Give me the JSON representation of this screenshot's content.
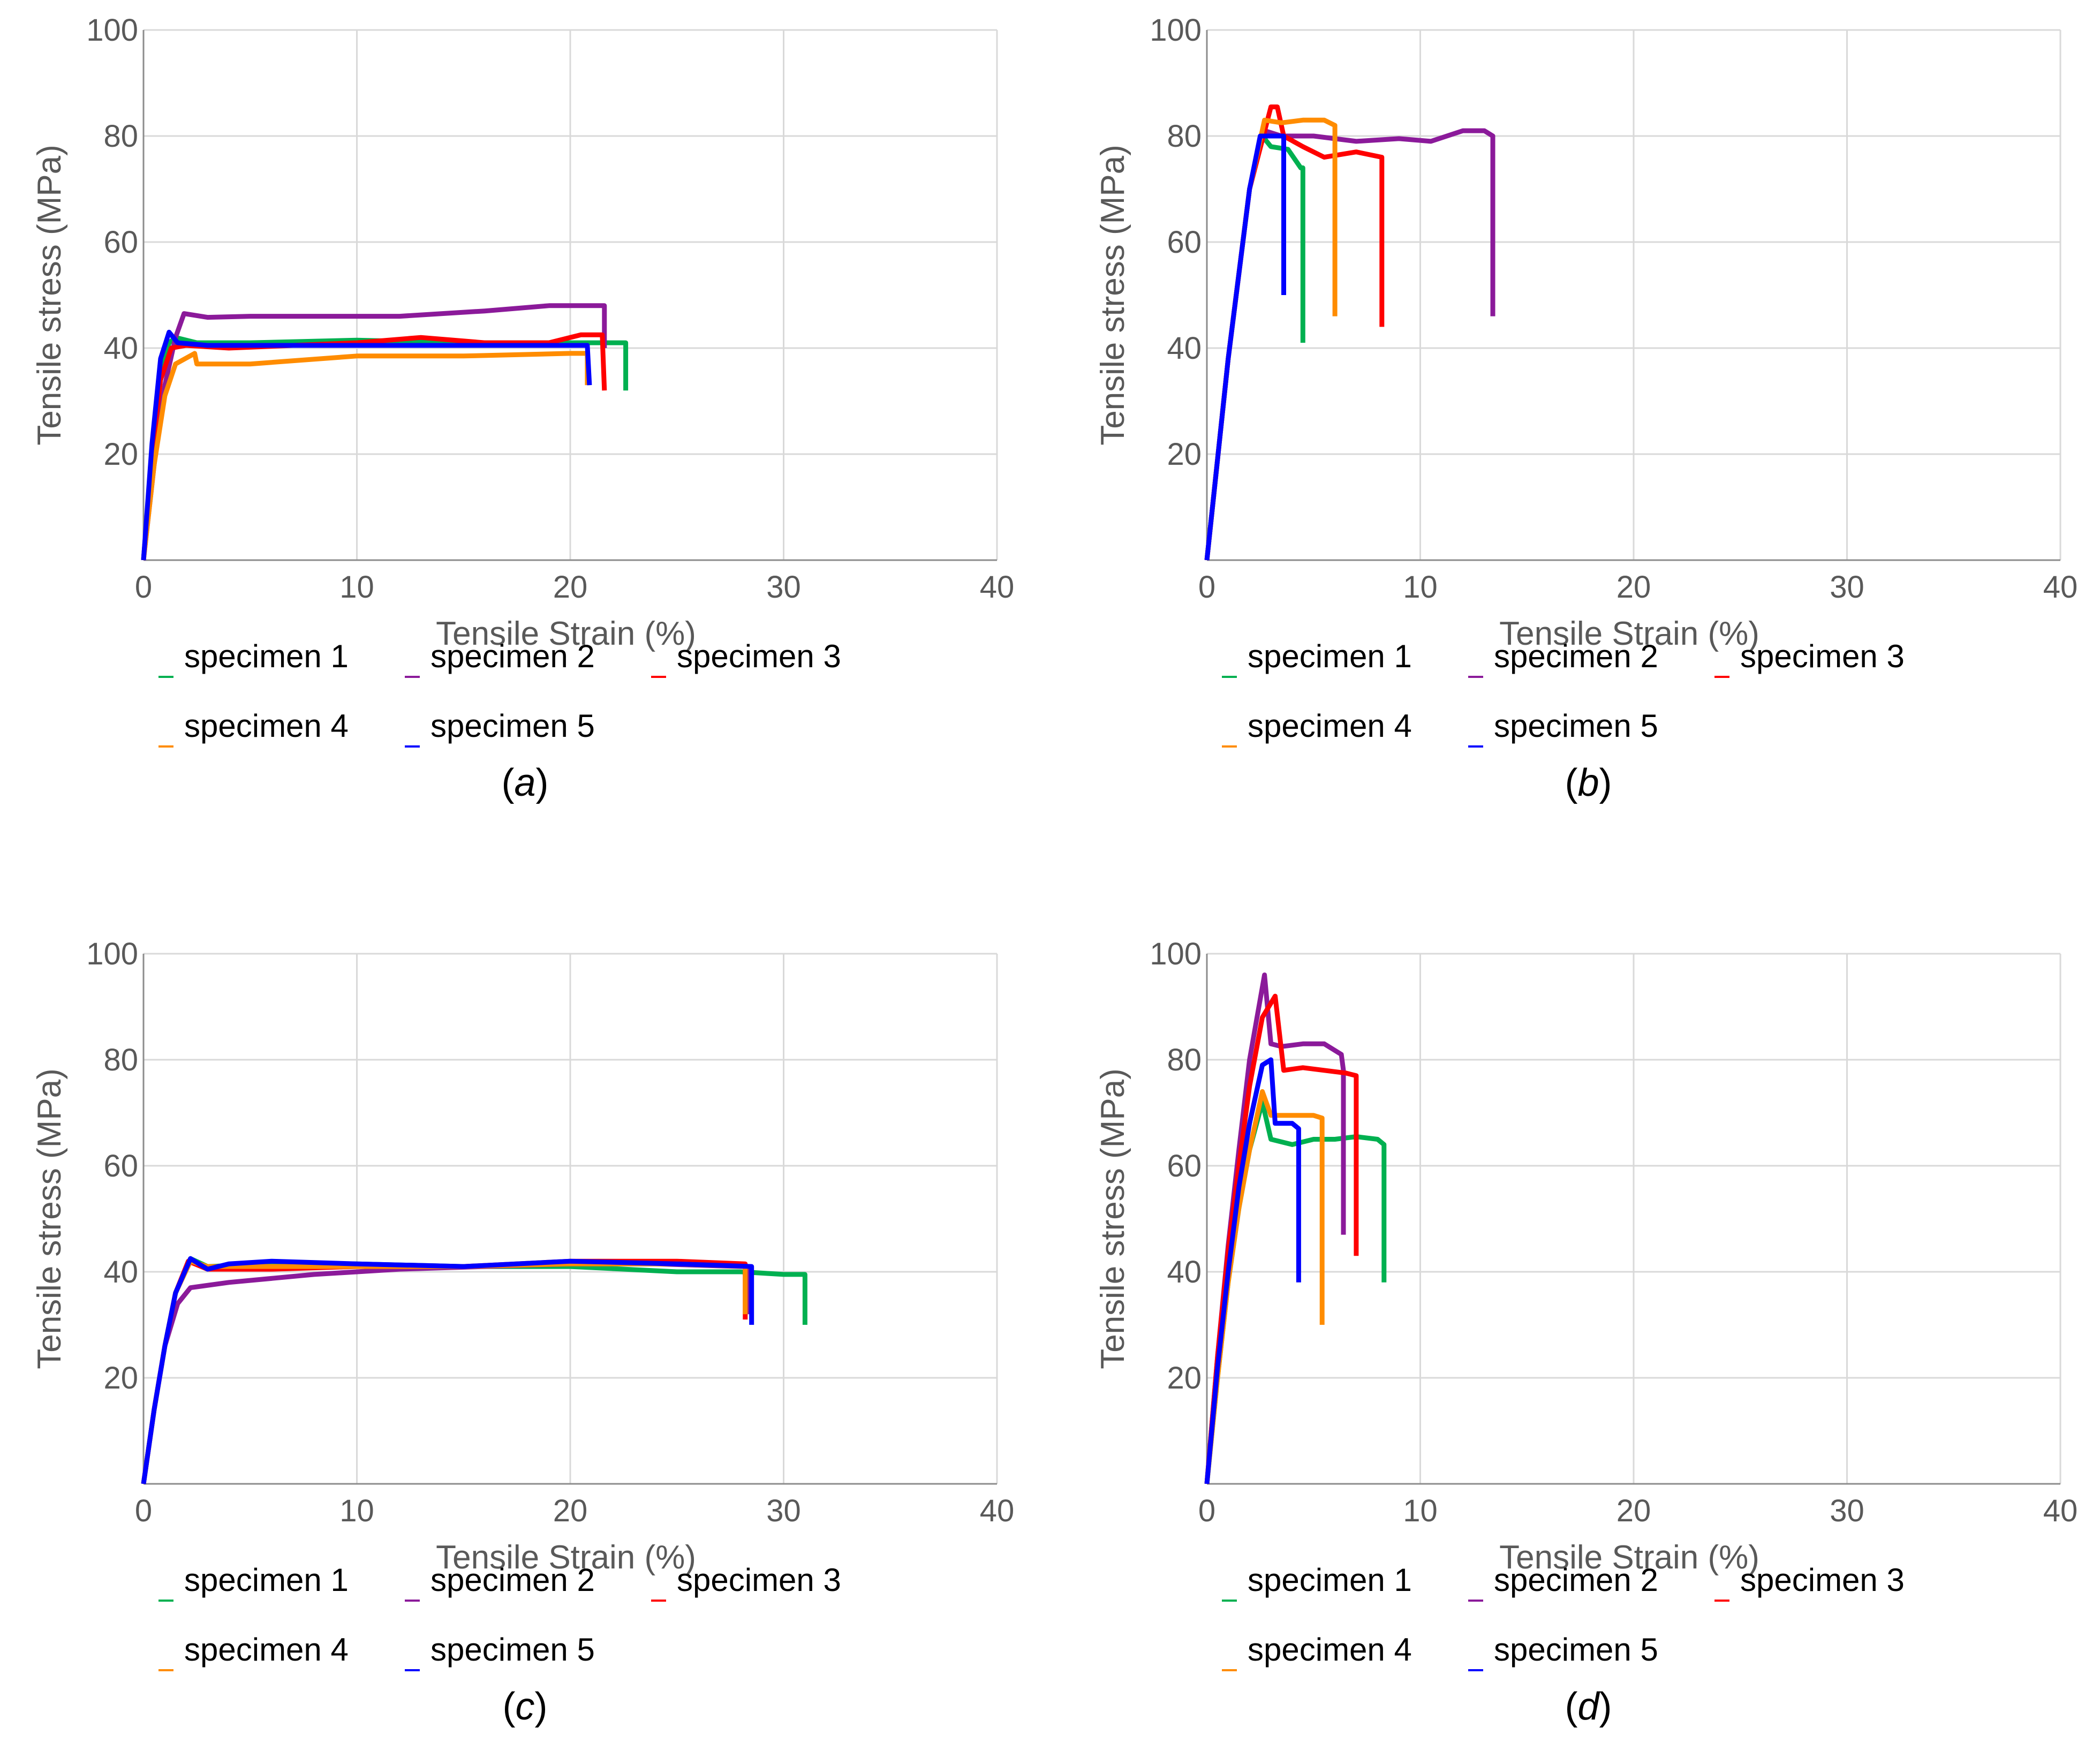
{
  "figure": {
    "colors": {
      "specimen 1": "#00b050",
      "specimen 2": "#8b1a9a",
      "specimen 3": "#ff0000",
      "specimen 4": "#ff8c00",
      "specimen 5": "#0000ff"
    }
  },
  "chart_data": [
    {
      "type": "line",
      "panel_label": "a",
      "xlabel": "Tensile Strain (%)",
      "ylabel": "Tensile stress (MPa)",
      "xlim": [
        0,
        40
      ],
      "ylim": [
        0,
        100
      ],
      "xticks": [
        0,
        10,
        20,
        30,
        40
      ],
      "yticks": [
        20,
        40,
        60,
        80,
        100
      ],
      "grid": true,
      "legend_position": "bottom",
      "series": [
        {
          "name": "specimen 1",
          "x": [
            0,
            0.4,
            0.8,
            1.2,
            1.5,
            2.5,
            5,
            10,
            15,
            20,
            22,
            22.6,
            22.6
          ],
          "y": [
            0,
            20,
            35,
            41,
            42,
            41,
            41,
            41.5,
            41,
            41,
            41,
            41,
            32
          ]
        },
        {
          "name": "specimen 2",
          "x": [
            0,
            0.5,
            1,
            1.5,
            1.9,
            3,
            5,
            8,
            12,
            16,
            19,
            21,
            21.6,
            21.6
          ],
          "y": [
            0,
            18,
            33,
            42,
            46.5,
            45.8,
            46,
            46,
            46,
            47,
            48,
            48,
            48,
            40
          ]
        },
        {
          "name": "specimen 3",
          "x": [
            0,
            0.4,
            0.8,
            1.3,
            2,
            4,
            7,
            10,
            13,
            16,
            19,
            20.5,
            21.5,
            21.6
          ],
          "y": [
            0,
            20,
            34,
            40,
            40.5,
            40,
            40.5,
            41,
            42,
            41,
            41,
            42.5,
            42.5,
            32
          ]
        },
        {
          "name": "specimen 4",
          "x": [
            0,
            0.5,
            1,
            1.5,
            2.4,
            2.5,
            5,
            10,
            15,
            20,
            20.8,
            20.8
          ],
          "y": [
            0,
            18,
            31,
            37,
            39,
            37,
            37,
            38.5,
            38.5,
            39,
            39,
            33
          ]
        },
        {
          "name": "specimen 5",
          "x": [
            0,
            0.4,
            0.8,
            1.2,
            1.6,
            3,
            6,
            10,
            14,
            18,
            20.8,
            20.9
          ],
          "y": [
            0,
            22,
            38,
            43,
            41,
            40.5,
            40.5,
            40.5,
            40.5,
            40.5,
            40.5,
            33
          ]
        }
      ]
    },
    {
      "type": "line",
      "panel_label": "b",
      "xlabel": "Tensile Strain (%)",
      "ylabel": "Tensile stress (MPa)",
      "xlim": [
        0,
        40
      ],
      "ylim": [
        0,
        100
      ],
      "xticks": [
        0,
        10,
        20,
        30,
        40
      ],
      "yticks": [
        20,
        40,
        60,
        80,
        100
      ],
      "grid": true,
      "legend_position": "bottom",
      "series": [
        {
          "name": "specimen 1",
          "x": [
            0,
            1,
            2,
            2.6,
            3,
            3.8,
            4.4,
            4.5,
            4.5
          ],
          "y": [
            0,
            38,
            70,
            80,
            78,
            77.5,
            74,
            74,
            41
          ]
        },
        {
          "name": "specimen 2",
          "x": [
            0,
            1,
            2,
            2.7,
            3.5,
            5,
            7,
            9,
            10.5,
            12,
            13,
            13.4,
            13.4
          ],
          "y": [
            0,
            38,
            70,
            81,
            80,
            80,
            79,
            79.5,
            79,
            81,
            81,
            80,
            46
          ]
        },
        {
          "name": "specimen 3",
          "x": [
            0,
            1,
            2,
            3,
            3.3,
            3.6,
            4.5,
            5.5,
            7,
            8.2,
            8.2
          ],
          "y": [
            0,
            38,
            70,
            85.5,
            85.5,
            80,
            78,
            76,
            77,
            76,
            44
          ]
        },
        {
          "name": "specimen 4",
          "x": [
            0,
            1,
            2,
            2.7,
            3.5,
            4.5,
            5.5,
            6,
            6,
            6
          ],
          "y": [
            0,
            38,
            70,
            83,
            82.5,
            83,
            83,
            82,
            76,
            46
          ]
        },
        {
          "name": "specimen 5",
          "x": [
            0,
            1,
            2,
            2.5,
            3,
            3.6,
            3.6
          ],
          "y": [
            0,
            38,
            70,
            80,
            80,
            80,
            50
          ]
        }
      ]
    },
    {
      "type": "line",
      "panel_label": "c",
      "xlabel": "Tensile Strain (%)",
      "ylabel": "Tensile stress (MPa)",
      "xlim": [
        0,
        40
      ],
      "ylim": [
        0,
        100
      ],
      "xticks": [
        0,
        10,
        20,
        30,
        40
      ],
      "yticks": [
        20,
        40,
        60,
        80,
        100
      ],
      "grid": true,
      "legend_position": "bottom",
      "series": [
        {
          "name": "specimen 1",
          "x": [
            0,
            0.5,
            1,
            1.5,
            2.2,
            3,
            6,
            10,
            15,
            20,
            25,
            28,
            30,
            31,
            31
          ],
          "y": [
            0,
            14,
            26,
            36,
            42.5,
            41,
            41.5,
            41.5,
            41,
            41,
            40,
            40,
            39.5,
            39.5,
            30
          ]
        },
        {
          "name": "specimen 2",
          "x": [
            0,
            0.5,
            1,
            1.6,
            2.2,
            4,
            8,
            12,
            16,
            20,
            24,
            28,
            28.3,
            28.3
          ],
          "y": [
            0,
            14,
            26,
            34,
            37,
            38,
            39.5,
            40.5,
            41,
            41.5,
            41.5,
            41,
            41,
            32
          ]
        },
        {
          "name": "specimen 3",
          "x": [
            0,
            0.5,
            1,
            1.5,
            2.1,
            3,
            6,
            10,
            15,
            20,
            25,
            28.2,
            28.2
          ],
          "y": [
            0,
            14,
            26,
            36,
            42,
            40.5,
            40.5,
            41,
            41,
            42,
            42,
            41.5,
            31
          ]
        },
        {
          "name": "specimen 4",
          "x": [
            0,
            0.5,
            1,
            1.5,
            2.2,
            3,
            6,
            10,
            15,
            20,
            25,
            28.2,
            28.2
          ],
          "y": [
            0,
            14,
            26,
            36,
            42,
            41,
            41,
            41,
            41,
            41.5,
            41.5,
            41,
            32
          ]
        },
        {
          "name": "specimen 5",
          "x": [
            0,
            0.5,
            1,
            1.5,
            2.2,
            3,
            4,
            6,
            10,
            15,
            20,
            25,
            28.5,
            28.5
          ],
          "y": [
            0,
            14,
            26,
            36,
            42.5,
            40.5,
            41.5,
            42,
            41.5,
            41,
            42,
            41.5,
            41,
            30
          ]
        }
      ]
    },
    {
      "type": "line",
      "panel_label": "d",
      "xlabel": "Tensile Strain (%)",
      "ylabel": "Tensile stress (MPa)",
      "xlim": [
        0,
        40
      ],
      "ylim": [
        0,
        100
      ],
      "xticks": [
        0,
        10,
        20,
        30,
        40
      ],
      "yticks": [
        20,
        40,
        60,
        80,
        100
      ],
      "grid": true,
      "legend_position": "bottom",
      "series": [
        {
          "name": "specimen 1",
          "x": [
            0,
            0.5,
            1,
            1.5,
            2,
            2.6,
            3,
            4,
            5,
            6,
            7,
            8,
            8.3,
            8.3
          ],
          "y": [
            0,
            20,
            38,
            52,
            63,
            72,
            65,
            64,
            65,
            65,
            65.5,
            65,
            64,
            38
          ]
        },
        {
          "name": "specimen 2",
          "x": [
            0,
            0.5,
            1,
            1.5,
            2,
            2.7,
            3,
            3.5,
            4.5,
            5.5,
            6.3,
            6.4,
            6.4
          ],
          "y": [
            0,
            24,
            45,
            63,
            80,
            96,
            83,
            82.5,
            83,
            83,
            81,
            78,
            47
          ]
        },
        {
          "name": "specimen 3",
          "x": [
            0,
            0.5,
            1,
            1.5,
            2,
            2.6,
            3.2,
            3.6,
            4.5,
            5.5,
            6.5,
            7,
            7,
            7
          ],
          "y": [
            0,
            24,
            44,
            60,
            75,
            88,
            92,
            78,
            78.5,
            78,
            77.5,
            77,
            76,
            43
          ]
        },
        {
          "name": "specimen 4",
          "x": [
            0,
            0.5,
            1,
            1.5,
            2,
            2.6,
            3,
            4,
            5,
            5.4,
            5.4
          ],
          "y": [
            0,
            20,
            38,
            52,
            63,
            74,
            69.5,
            69.5,
            69.5,
            69,
            30
          ]
        },
        {
          "name": "specimen 5",
          "x": [
            0,
            0.5,
            1,
            1.5,
            2,
            2.6,
            3,
            3.2,
            4,
            4.3,
            4.3
          ],
          "y": [
            0,
            22,
            40,
            56,
            68,
            79,
            80,
            68,
            68,
            67,
            38
          ]
        }
      ]
    }
  ]
}
